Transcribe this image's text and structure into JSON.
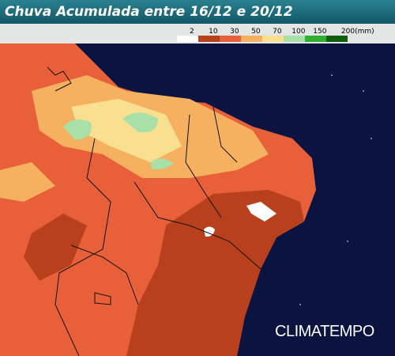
{
  "header": {
    "title": "Chuva Acumulada entre 16/12 e 20/12"
  },
  "legend": {
    "labels": [
      "2",
      "10",
      "30",
      "50",
      "70",
      "100",
      "150",
      "200(mm)"
    ],
    "colors": [
      "#ffffff",
      "#b8401c",
      "#e8603a",
      "#f5b060",
      "#f8e090",
      "#a8e0a8",
      "#30b030",
      "#0f5f0f"
    ]
  },
  "watermark": "CLIMATEMPO"
}
